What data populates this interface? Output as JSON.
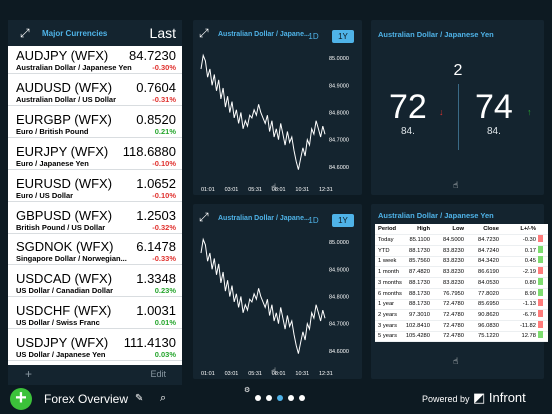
{
  "colors": {
    "accent": "#4fb3e8",
    "negative": "#e0322f",
    "positive": "#27a62e",
    "background": "#0d1a22"
  },
  "watchlist": {
    "title": "Major Currencies",
    "column_label": "Last",
    "rows": [
      {
        "symbol": "AUDJPY (WFX)",
        "description": "Australian Dollar / Japanese Yen",
        "price": "84.7230",
        "change": "-0.30%",
        "direction": "neg"
      },
      {
        "symbol": "AUDUSD (WFX)",
        "description": "Australian Dollar / US Dollar",
        "price": "0.7604",
        "change": "-0.31%",
        "direction": "neg"
      },
      {
        "symbol": "EURGBP (WFX)",
        "description": "Euro / British Pound",
        "price": "0.8520",
        "change": "0.21%",
        "direction": "pos"
      },
      {
        "symbol": "EURJPY (WFX)",
        "description": "Euro / Japanese Yen",
        "price": "118.6880",
        "change": "-0.10%",
        "direction": "neg"
      },
      {
        "symbol": "EURUSD (WFX)",
        "description": "Euro / US Dollar",
        "price": "1.0652",
        "change": "-0.10%",
        "direction": "neg"
      },
      {
        "symbol": "GBPUSD (WFX)",
        "description": "British Pound / US Dollar",
        "price": "1.2503",
        "change": "-0.32%",
        "direction": "neg"
      },
      {
        "symbol": "SGDNOK (WFX)",
        "description": "Singapore Dollar / Norwegian...",
        "price": "6.1478",
        "change": "-0.33%",
        "direction": "neg"
      },
      {
        "symbol": "USDCAD (WFX)",
        "description": "US Dollar / Canadian Dollar",
        "price": "1.3348",
        "change": "0.23%",
        "direction": "pos"
      },
      {
        "symbol": "USDCHF (WFX)",
        "description": "US Dollar / Swiss Franc",
        "price": "1.0031",
        "change": "0.01%",
        "direction": "pos"
      },
      {
        "symbol": "USDJPY (WFX)",
        "description": "US Dollar / Japanese Yen",
        "price": "111.4130",
        "change": "0.03%",
        "direction": "pos"
      }
    ],
    "add_label": "+",
    "edit_label": "Edit"
  },
  "chart_top": {
    "title": "Australian Dollar / Japane...",
    "tabs": [
      "1D",
      "1Y"
    ],
    "active_tab": "1Y"
  },
  "chart_bottom": {
    "title": "Australian Dollar / Japane...",
    "tabs": [
      "1D",
      "1Y"
    ],
    "active_tab": "1Y"
  },
  "chart_data": [
    {
      "type": "line",
      "x_ticks": [
        "01:01",
        "03:01",
        "05:31",
        "08:01",
        "10:31",
        "12:31"
      ],
      "y_ticks": [
        "85.0000",
        "84.9000",
        "84.8000",
        "84.7000",
        "84.6000"
      ],
      "ylim": [
        84.57,
        85.03
      ],
      "values": [
        84.96,
        85.01,
        84.99,
        84.93,
        84.96,
        84.9,
        84.94,
        84.88,
        84.92,
        84.85,
        84.89,
        84.82,
        84.86,
        84.8,
        84.84,
        84.78,
        84.81,
        84.76,
        84.8,
        84.74,
        84.77,
        84.75,
        84.79,
        84.78,
        84.81,
        84.79,
        84.83,
        84.8,
        84.78,
        84.76,
        84.79,
        84.73,
        84.77,
        84.71,
        84.74,
        84.7,
        84.76,
        84.72,
        84.68,
        84.73,
        84.69,
        84.71,
        84.66,
        84.62,
        84.59,
        84.63,
        84.67,
        84.64,
        84.7,
        84.68,
        84.74,
        84.72,
        84.77,
        84.74,
        84.71,
        84.75,
        84.72
      ]
    },
    {
      "type": "line",
      "x_ticks": [
        "01:01",
        "03:01",
        "05:31",
        "08:01",
        "10:31",
        "12:31"
      ],
      "y_ticks": [
        "85.0000",
        "84.9000",
        "84.8000",
        "84.7000",
        "84.6000"
      ],
      "ylim": [
        84.57,
        85.03
      ],
      "values": [
        84.96,
        85.01,
        84.99,
        84.93,
        84.96,
        84.9,
        84.94,
        84.88,
        84.92,
        84.85,
        84.89,
        84.82,
        84.86,
        84.8,
        84.84,
        84.78,
        84.81,
        84.76,
        84.8,
        84.74,
        84.77,
        84.75,
        84.79,
        84.78,
        84.81,
        84.79,
        84.83,
        84.8,
        84.78,
        84.76,
        84.79,
        84.73,
        84.77,
        84.71,
        84.74,
        84.7,
        84.76,
        84.72,
        84.68,
        84.73,
        84.69,
        84.71,
        84.66,
        84.62,
        84.59,
        84.63,
        84.67,
        84.64,
        84.7,
        84.68,
        84.74,
        84.72,
        84.77,
        84.74,
        84.71,
        84.75,
        84.72
      ]
    }
  ],
  "quote": {
    "title": "Australian Dollar / Japanese Yen",
    "spread": "2",
    "bid_big": "72",
    "bid_small": "84.",
    "ask_big": "74",
    "ask_small": "84."
  },
  "performance": {
    "title": "Australian Dollar / Japanese Yen",
    "headers": [
      "Period",
      "High",
      "Low",
      "Close",
      "L+/-%"
    ],
    "rows": [
      {
        "period": "Today",
        "high": "85.1100",
        "low": "84.5000",
        "close": "84.7230",
        "pct": "-0.30",
        "dir": "neg"
      },
      {
        "period": "YTD",
        "high": "88.1730",
        "low": "83.8230",
        "close": "84.7240",
        "pct": "0.17",
        "dir": "pos"
      },
      {
        "period": "1 week",
        "high": "85.7560",
        "low": "83.8230",
        "close": "84.3420",
        "pct": "0.45",
        "dir": "pos"
      },
      {
        "period": "1 month",
        "high": "87.4820",
        "low": "83.8230",
        "close": "86.6190",
        "pct": "-2.19",
        "dir": "neg"
      },
      {
        "period": "3 months",
        "high": "88.1730",
        "low": "83.8230",
        "close": "84.0530",
        "pct": "0.80",
        "dir": "pos"
      },
      {
        "period": "6 months",
        "high": "88.1730",
        "low": "76.7950",
        "close": "77.8020",
        "pct": "8.90",
        "dir": "pos"
      },
      {
        "period": "1 year",
        "high": "88.1730",
        "low": "72.4780",
        "close": "85.6950",
        "pct": "-1.13",
        "dir": "neg"
      },
      {
        "period": "2 years",
        "high": "97.3010",
        "low": "72.4780",
        "close": "90.8620",
        "pct": "-6.76",
        "dir": "neg"
      },
      {
        "period": "3 years",
        "high": "102.8410",
        "low": "72.4780",
        "close": "96.0830",
        "pct": "-11.82",
        "dir": "neg"
      },
      {
        "period": "5 years",
        "high": "105.4280",
        "low": "72.4780",
        "close": "75.1220",
        "pct": "12.78",
        "dir": "pos"
      }
    ]
  },
  "bottom_bar": {
    "page_title": "Forex Overview",
    "powered_by": "Powered by",
    "logo_text": "Infront",
    "page_count": 5,
    "active_page": 3
  }
}
